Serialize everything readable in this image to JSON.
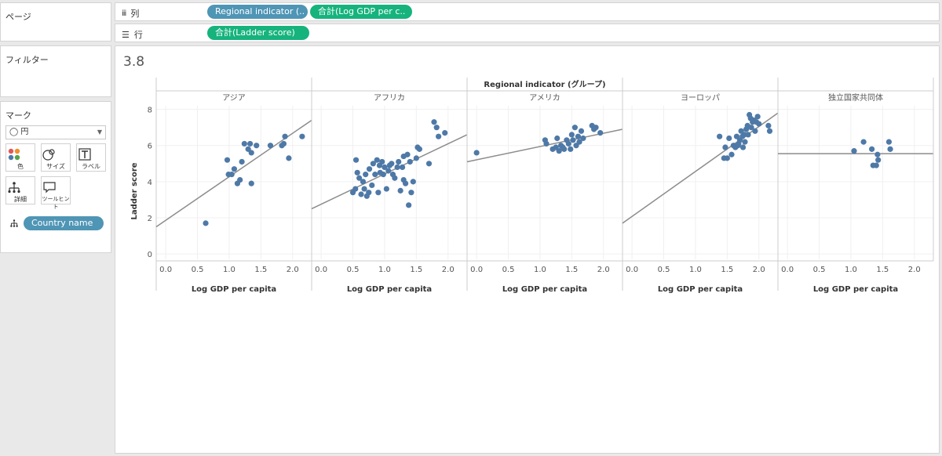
{
  "panels": {
    "pages_label": "ページ",
    "filters_label": "フィルター",
    "marks_label": "マーク"
  },
  "marks": {
    "type": "◯ 円",
    "buttons": [
      {
        "label": "色",
        "icon": "color-icon"
      },
      {
        "label": "サイズ",
        "icon": "size-icon"
      },
      {
        "label": "ラベル",
        "icon": "label-icon"
      },
      {
        "label": "詳細",
        "icon": "detail-icon"
      },
      {
        "label": "ツールヒント",
        "icon": "tooltip-icon"
      }
    ],
    "detail_field": "Country name"
  },
  "shelves": {
    "columns_label": "列",
    "rows_label": "行",
    "columns_pills": [
      "Regional indicator (..",
      "合計(Log GDP per c.."
    ],
    "rows_pills": [
      "合計(Ladder score)"
    ]
  },
  "colors": {
    "dimension_pill": "#4f95b5",
    "measure_pill": "#16b37d",
    "point": "#4e79a7",
    "trend": "#8c8c8c"
  },
  "view": {
    "title": "3.8",
    "group_header": "Regional indicator (グループ)"
  },
  "chart_data": {
    "type": "scatter",
    "title": "3.8",
    "facet_label": "Regional indicator (グループ)",
    "xlabel": "Log GDP per capita",
    "ylabel": "Ladder score",
    "xlim": [
      -0.15,
      2.3
    ],
    "ylim": [
      -0.3,
      8.2
    ],
    "x_ticks": [
      0.0,
      0.5,
      1.0,
      1.5,
      2.0
    ],
    "x_tick_labels": [
      "0.0",
      "0.5",
      "1.0",
      "1.5",
      "2.0"
    ],
    "y_ticks": [
      0,
      2,
      4,
      6,
      8
    ],
    "y_tick_labels": [
      "0",
      "2",
      "4",
      "6",
      "8"
    ],
    "facets": [
      {
        "name": "アジア",
        "trend": [
          [
            -0.15,
            1.5
          ],
          [
            2.3,
            7.4
          ]
        ],
        "points": [
          [
            0.63,
            1.7
          ],
          [
            0.97,
            5.2
          ],
          [
            0.99,
            4.4
          ],
          [
            1.04,
            4.4
          ],
          [
            1.08,
            4.7
          ],
          [
            1.13,
            3.9
          ],
          [
            1.17,
            4.1
          ],
          [
            1.2,
            5.1
          ],
          [
            1.24,
            6.1
          ],
          [
            1.3,
            5.8
          ],
          [
            1.33,
            6.1
          ],
          [
            1.35,
            5.6
          ],
          [
            1.35,
            3.9
          ],
          [
            1.43,
            6.0
          ],
          [
            1.65,
            6.0
          ],
          [
            1.83,
            6.0
          ],
          [
            1.86,
            6.1
          ],
          [
            1.88,
            6.5
          ],
          [
            1.94,
            5.3
          ],
          [
            2.15,
            6.5
          ]
        ]
      },
      {
        "name": "アフリカ",
        "trend": [
          [
            -0.15,
            2.5
          ],
          [
            2.3,
            6.6
          ]
        ],
        "points": [
          [
            0.5,
            3.4
          ],
          [
            0.54,
            3.6
          ],
          [
            0.55,
            5.2
          ],
          [
            0.57,
            4.5
          ],
          [
            0.6,
            4.2
          ],
          [
            0.63,
            3.3
          ],
          [
            0.66,
            4.0
          ],
          [
            0.68,
            3.6
          ],
          [
            0.7,
            4.4
          ],
          [
            0.72,
            3.2
          ],
          [
            0.75,
            3.4
          ],
          [
            0.76,
            4.7
          ],
          [
            0.8,
            3.8
          ],
          [
            0.82,
            5.0
          ],
          [
            0.85,
            4.4
          ],
          [
            0.88,
            5.2
          ],
          [
            0.9,
            3.4
          ],
          [
            0.92,
            4.9
          ],
          [
            0.93,
            4.5
          ],
          [
            0.96,
            5.1
          ],
          [
            0.98,
            4.4
          ],
          [
            1.0,
            4.8
          ],
          [
            1.03,
            3.6
          ],
          [
            1.06,
            4.6
          ],
          [
            1.08,
            4.9
          ],
          [
            1.11,
            5.0
          ],
          [
            1.13,
            4.4
          ],
          [
            1.16,
            4.2
          ],
          [
            1.2,
            4.8
          ],
          [
            1.22,
            5.1
          ],
          [
            1.25,
            3.5
          ],
          [
            1.28,
            4.8
          ],
          [
            1.3,
            4.1
          ],
          [
            1.3,
            5.4
          ],
          [
            1.33,
            3.9
          ],
          [
            1.36,
            5.5
          ],
          [
            1.38,
            2.7
          ],
          [
            1.4,
            5.1
          ],
          [
            1.42,
            3.4
          ],
          [
            1.45,
            4.0
          ],
          [
            1.5,
            5.3
          ],
          [
            1.52,
            5.9
          ],
          [
            1.55,
            5.8
          ],
          [
            1.7,
            5.0
          ],
          [
            1.78,
            7.3
          ],
          [
            1.82,
            7.0
          ],
          [
            1.85,
            6.5
          ],
          [
            1.95,
            6.7
          ]
        ]
      },
      {
        "name": "アメリカ",
        "trend": [
          [
            -0.15,
            5.1
          ],
          [
            2.3,
            6.9
          ]
        ],
        "points": [
          [
            0.0,
            5.6
          ],
          [
            1.08,
            6.3
          ],
          [
            1.1,
            6.1
          ],
          [
            1.2,
            5.8
          ],
          [
            1.25,
            5.9
          ],
          [
            1.27,
            6.4
          ],
          [
            1.3,
            5.7
          ],
          [
            1.33,
            6.0
          ],
          [
            1.36,
            5.9
          ],
          [
            1.38,
            5.8
          ],
          [
            1.42,
            6.3
          ],
          [
            1.45,
            6.1
          ],
          [
            1.48,
            5.8
          ],
          [
            1.5,
            6.6
          ],
          [
            1.52,
            6.3
          ],
          [
            1.55,
            7.0
          ],
          [
            1.57,
            6.0
          ],
          [
            1.6,
            6.5
          ],
          [
            1.62,
            6.2
          ],
          [
            1.65,
            6.8
          ],
          [
            1.68,
            6.4
          ],
          [
            1.82,
            7.1
          ],
          [
            1.85,
            6.9
          ],
          [
            1.88,
            7.0
          ],
          [
            1.95,
            6.7
          ]
        ]
      },
      {
        "name": "ヨーロッパ",
        "trend": [
          [
            -0.15,
            1.7
          ],
          [
            2.3,
            7.8
          ]
        ],
        "points": [
          [
            1.38,
            6.5
          ],
          [
            1.45,
            5.3
          ],
          [
            1.47,
            5.9
          ],
          [
            1.5,
            5.3
          ],
          [
            1.53,
            6.4
          ],
          [
            1.57,
            5.5
          ],
          [
            1.6,
            6.0
          ],
          [
            1.63,
            5.9
          ],
          [
            1.65,
            6.5
          ],
          [
            1.67,
            6.0
          ],
          [
            1.68,
            6.1
          ],
          [
            1.7,
            6.3
          ],
          [
            1.72,
            6.8
          ],
          [
            1.74,
            6.5
          ],
          [
            1.75,
            5.9
          ],
          [
            1.77,
            6.6
          ],
          [
            1.78,
            6.2
          ],
          [
            1.8,
            6.9
          ],
          [
            1.82,
            7.1
          ],
          [
            1.83,
            6.6
          ],
          [
            1.85,
            7.7
          ],
          [
            1.87,
            7.5
          ],
          [
            1.88,
            7.0
          ],
          [
            1.9,
            7.3
          ],
          [
            1.92,
            7.4
          ],
          [
            1.94,
            6.8
          ],
          [
            1.96,
            7.3
          ],
          [
            1.98,
            7.6
          ],
          [
            2.0,
            7.2
          ],
          [
            2.15,
            7.1
          ],
          [
            2.17,
            6.8
          ]
        ]
      },
      {
        "name": "独立国家共同体",
        "trend": [
          [
            -0.15,
            5.55
          ],
          [
            2.3,
            5.55
          ]
        ],
        "points": [
          [
            1.05,
            5.7
          ],
          [
            1.2,
            6.2
          ],
          [
            1.33,
            5.8
          ],
          [
            1.35,
            4.9
          ],
          [
            1.4,
            4.9
          ],
          [
            1.42,
            5.5
          ],
          [
            1.43,
            5.2
          ],
          [
            1.6,
            6.2
          ],
          [
            1.62,
            5.8
          ]
        ]
      }
    ]
  }
}
